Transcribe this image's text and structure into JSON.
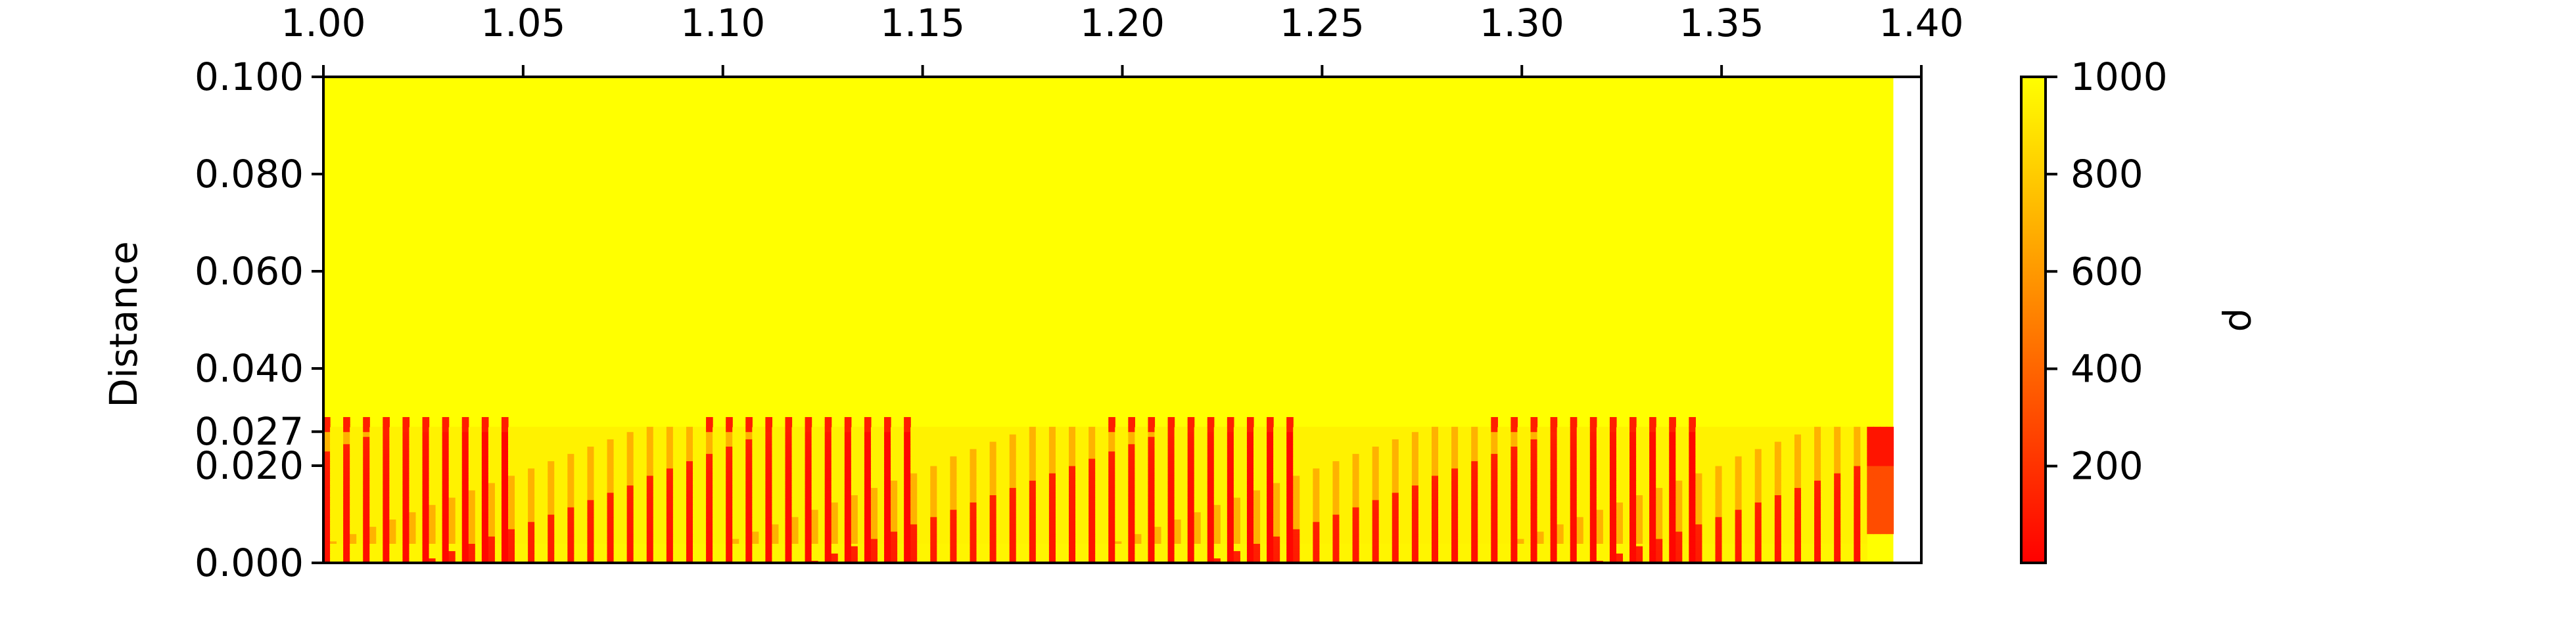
{
  "chart_data": {
    "type": "heatmap",
    "title": "",
    "xlabel": "",
    "ylabel": "Distance",
    "x_axis_position": "top",
    "xlim": [
      1.0,
      1.4
    ],
    "ylim": [
      0.0,
      0.1
    ],
    "data_x_end": 1.393,
    "x_ticks": [
      "1.00",
      "1.05",
      "1.10",
      "1.15",
      "1.20",
      "1.25",
      "1.30",
      "1.35",
      "1.40"
    ],
    "x_tick_values": [
      1.0,
      1.05,
      1.1,
      1.15,
      1.2,
      1.25,
      1.3,
      1.35,
      1.4
    ],
    "y_ticks": [
      "0.000",
      "0.020",
      "0.027",
      "0.040",
      "0.060",
      "0.080",
      "0.100"
    ],
    "y_tick_values": [
      0.0,
      0.02,
      0.027,
      0.04,
      0.06,
      0.08,
      0.1
    ],
    "colorbar": {
      "label": "ρ",
      "range": [
        1,
        1000
      ],
      "ticks": [
        "200",
        "400",
        "600",
        "800",
        "1000"
      ],
      "tick_values": [
        200,
        400,
        600,
        800,
        1000
      ],
      "colormap": "autumn",
      "low_color": "#ff0000",
      "high_color": "#ffff00"
    },
    "grid": false,
    "pattern": {
      "background_value": 1000,
      "low_density_band": [
        0.0,
        0.027
      ],
      "low_density_value": 30,
      "streak_top_max": 0.066,
      "streak_count": 78
    }
  }
}
